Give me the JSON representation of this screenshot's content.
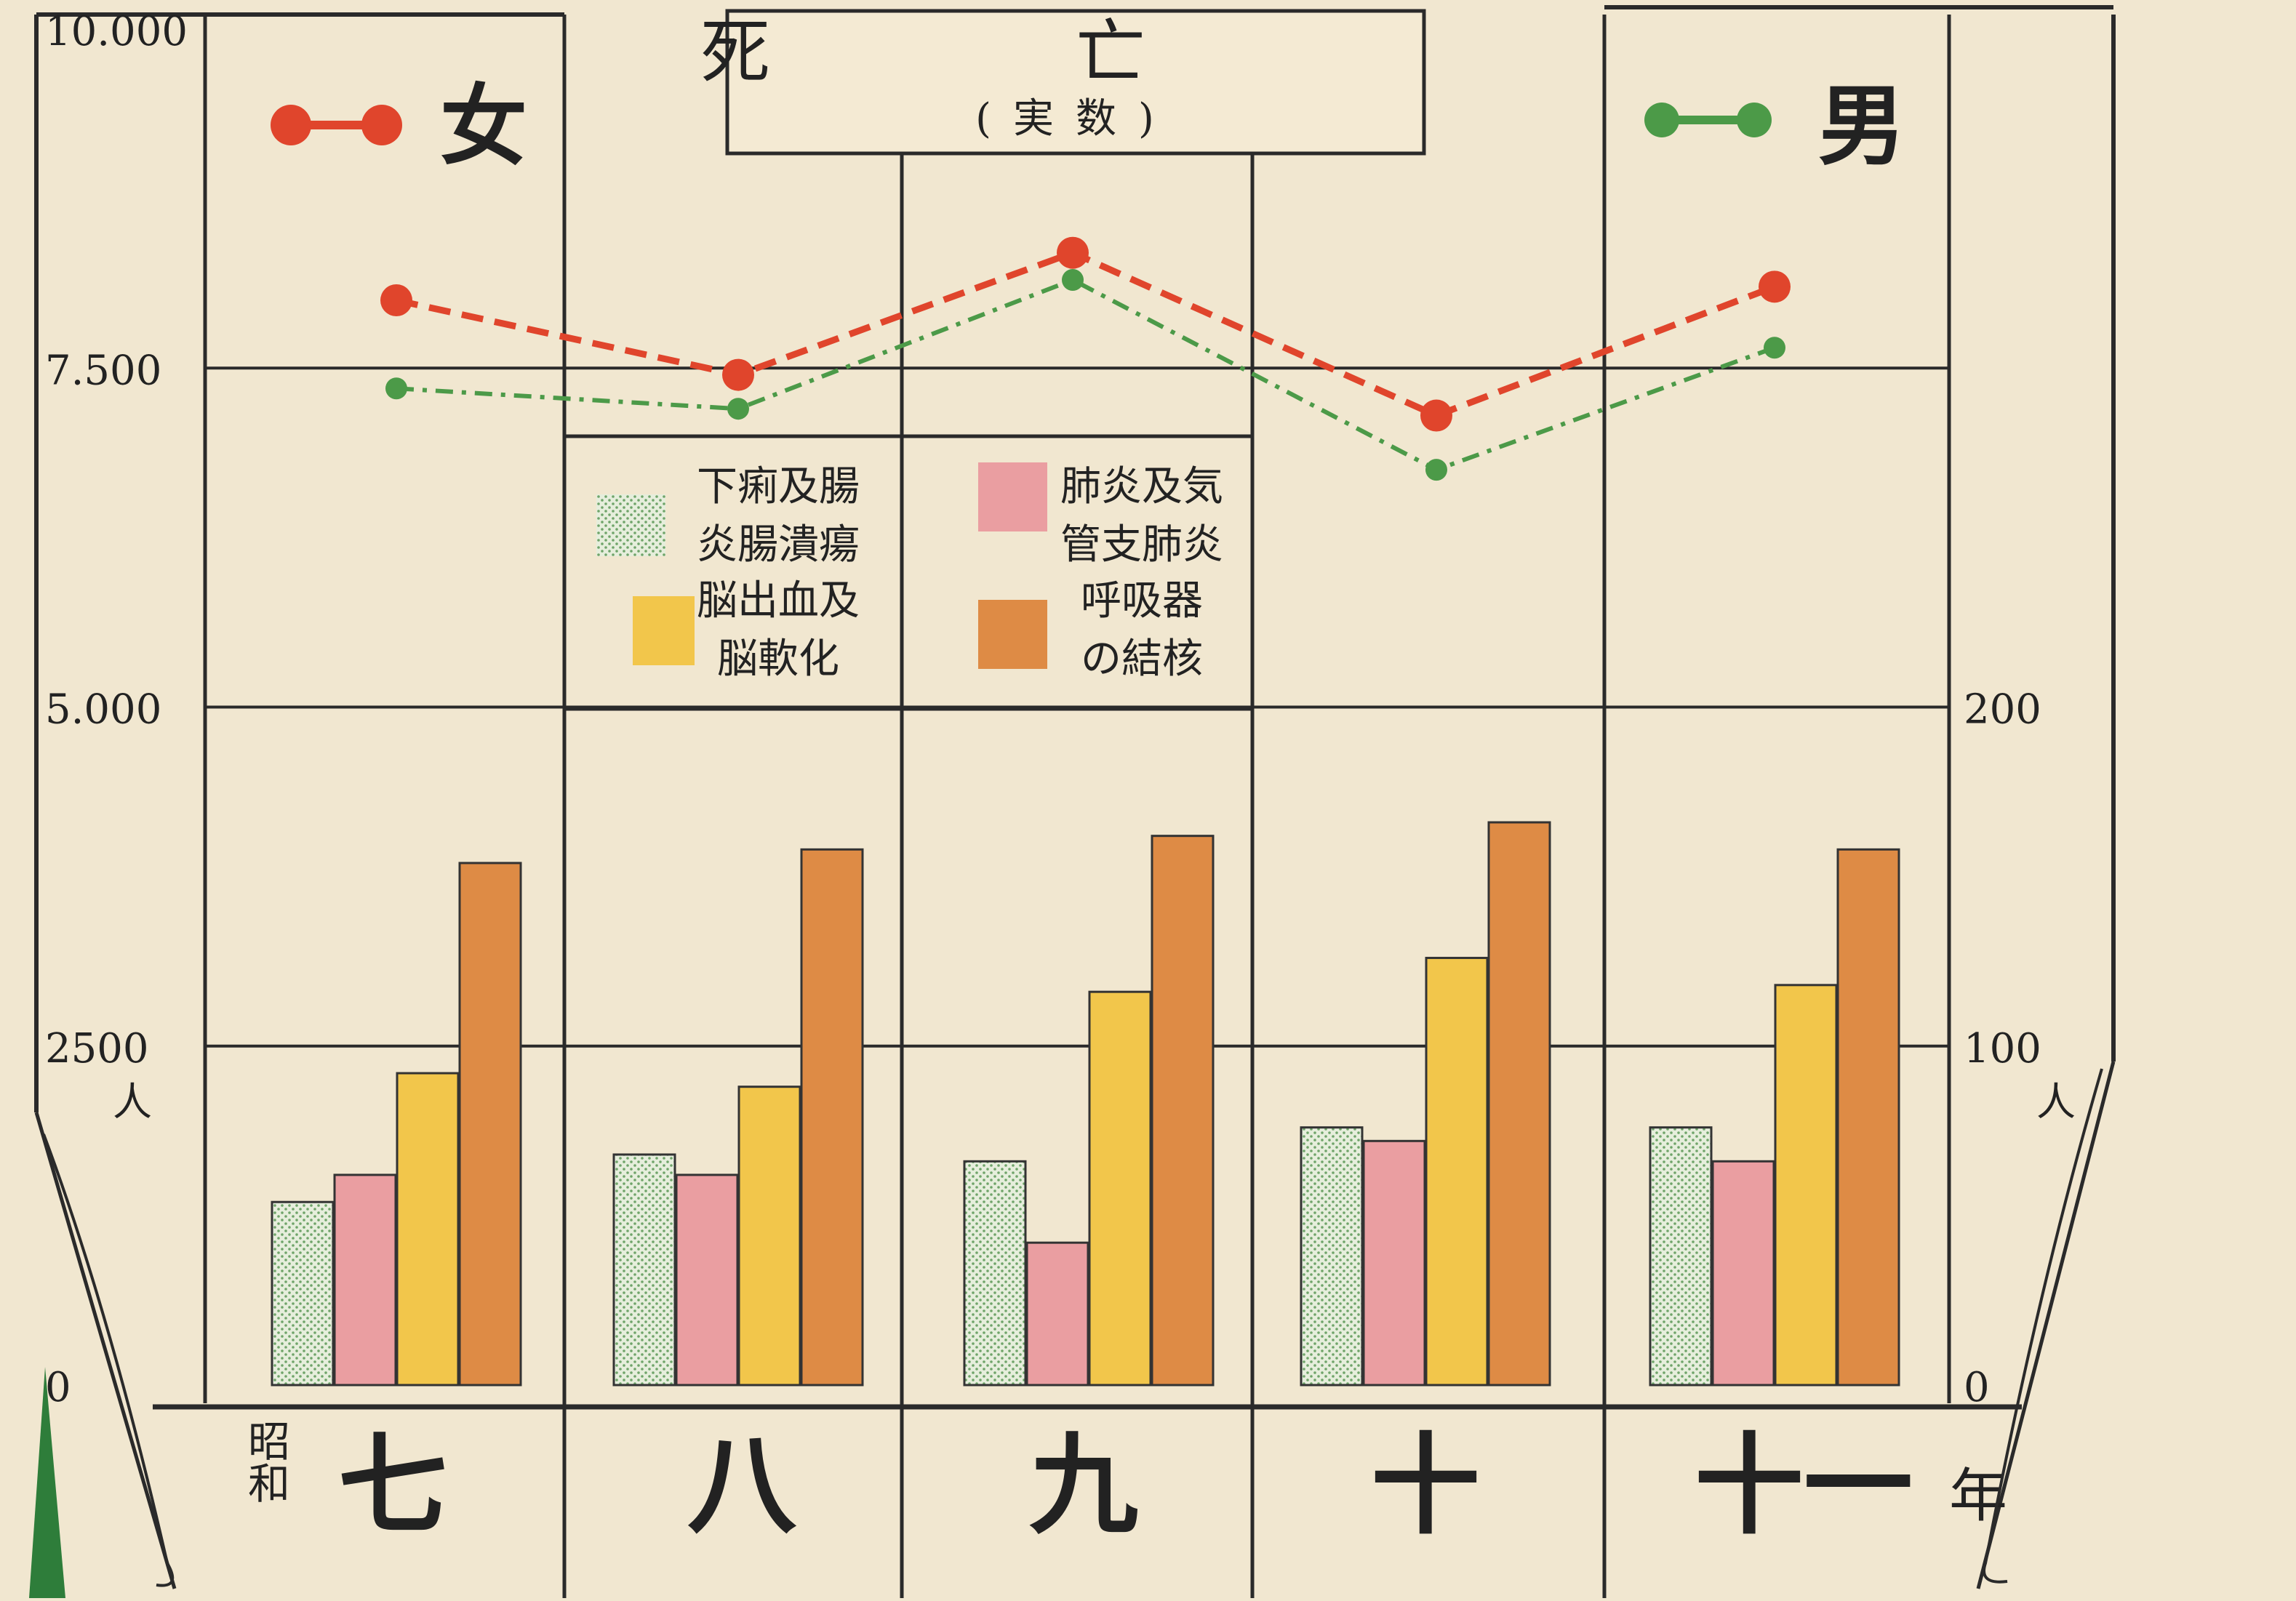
{
  "chart_data": {
    "type": "bar+line",
    "title": "死亡",
    "subtitle": "(実数)",
    "categories": [
      "七",
      "八",
      "九",
      "十",
      "十一"
    ],
    "x_prefix": "昭和",
    "x_suffix": "年",
    "left_axis": {
      "ticks": [
        "10.000",
        "7.500",
        "5.000",
        "2500",
        "0"
      ],
      "tick_values": [
        10000,
        7500,
        5000,
        2500,
        0
      ],
      "unit": "人",
      "ylim": [
        0,
        10000
      ]
    },
    "right_axis": {
      "ticks": [
        "200",
        "100",
        "0"
      ],
      "tick_values": [
        200,
        100,
        0
      ],
      "unit": "人",
      "ylim": [
        0,
        400
      ]
    },
    "line_series": [
      {
        "name": "女",
        "color": "#e0452c",
        "style": "dashed",
        "values": [
          8000,
          7450,
          8350,
          7150,
          8100
        ]
      },
      {
        "name": "男",
        "color": "#4c9a48",
        "style": "dash-dot",
        "values": [
          7350,
          7200,
          8150,
          6750,
          7650
        ]
      }
    ],
    "bar_series": [
      {
        "name": "下痢及腸炎腸潰瘍",
        "label_lines": [
          "下痢及腸",
          "炎腸潰瘍"
        ],
        "color": "#d9e6cf",
        "pattern": "dotted-green",
        "values": [
          1350,
          1700,
          1650,
          1900,
          1900
        ]
      },
      {
        "name": "肺炎及気管支肺炎",
        "label_lines": [
          "肺炎及気",
          "管支肺炎"
        ],
        "color": "#ea9ea1",
        "values": [
          1550,
          1550,
          1050,
          1800,
          1650
        ]
      },
      {
        "name": "脳出血及脳軟化",
        "label_lines": [
          "脳出血及",
          "脳軟化"
        ],
        "color": "#f2c64b",
        "values": [
          2300,
          2200,
          2900,
          3150,
          2950
        ]
      },
      {
        "name": "呼吸器の結核",
        "label_lines": [
          "呼吸器",
          "の結核"
        ],
        "color": "#de8b45",
        "values": [
          3850,
          3950,
          4050,
          4150,
          3950
        ]
      }
    ],
    "grid": true,
    "legend": "center"
  }
}
